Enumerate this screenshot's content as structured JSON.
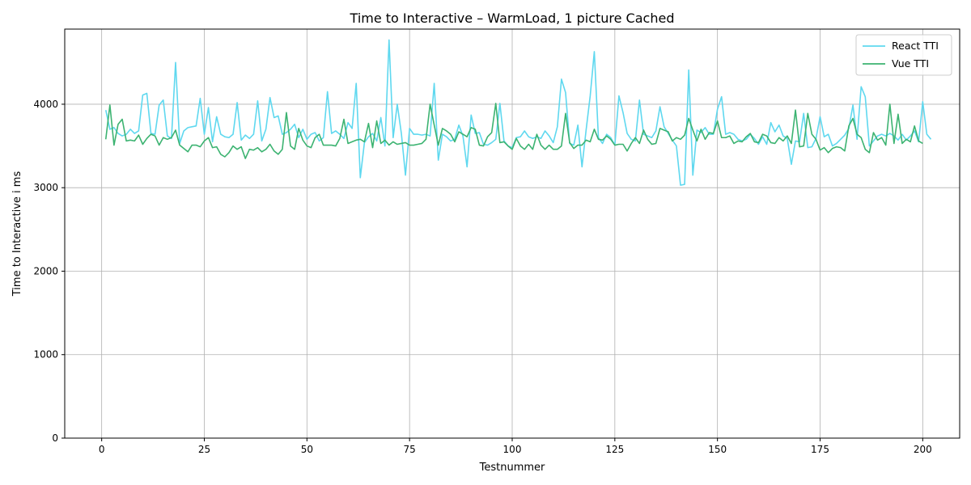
{
  "chart_data": {
    "type": "line",
    "title": "Time to Interactive  – WarmLoad, 1 picture Cached",
    "xlabel": "Testnummer",
    "ylabel": "Time to Interactive  i ms",
    "xlim": [
      -9,
      209
    ],
    "ylim": [
      0,
      4900
    ],
    "xticks": [
      0,
      25,
      50,
      75,
      100,
      125,
      150,
      175,
      200
    ],
    "yticks": [
      0,
      1000,
      2000,
      3000,
      4000
    ],
    "grid": true,
    "legend_position": "top-right",
    "series": [
      {
        "name": "React TTI",
        "color": "#5fd8ef",
        "x_start": 1,
        "values": [
          3930,
          3700,
          3720,
          3650,
          3620,
          3640,
          3700,
          3650,
          3680,
          4110,
          4130,
          3650,
          3640,
          3990,
          4050,
          3620,
          3590,
          4500,
          3530,
          3680,
          3720,
          3730,
          3740,
          4070,
          3640,
          3960,
          3550,
          3850,
          3640,
          3610,
          3600,
          3640,
          4020,
          3570,
          3630,
          3590,
          3640,
          4040,
          3560,
          3700,
          4080,
          3840,
          3860,
          3640,
          3660,
          3700,
          3760,
          3600,
          3700,
          3580,
          3640,
          3660,
          3560,
          3600,
          4150,
          3650,
          3680,
          3640,
          3590,
          3780,
          3710,
          4250,
          3120,
          3540,
          3610,
          3650,
          3560,
          3840,
          3500,
          4770,
          3600,
          4000,
          3650,
          3150,
          3710,
          3640,
          3640,
          3630,
          3640,
          3620,
          4250,
          3330,
          3640,
          3610,
          3560,
          3580,
          3750,
          3620,
          3250,
          3870,
          3650,
          3660,
          3520,
          3510,
          3540,
          3580,
          4010,
          3560,
          3500,
          3480,
          3600,
          3610,
          3680,
          3610,
          3590,
          3610,
          3590,
          3680,
          3620,
          3540,
          3730,
          4300,
          4140,
          3530,
          3510,
          3750,
          3250,
          3690,
          4100,
          4630,
          3600,
          3530,
          3640,
          3600,
          3510,
          4100,
          3900,
          3650,
          3580,
          3560,
          4050,
          3640,
          3620,
          3600,
          3680,
          3970,
          3730,
          3650,
          3570,
          3500,
          3030,
          3040,
          4410,
          3150,
          3690,
          3660,
          3720,
          3640,
          3640,
          3940,
          4090,
          3640,
          3660,
          3640,
          3580,
          3560,
          3580,
          3640,
          3590,
          3520,
          3610,
          3520,
          3780,
          3670,
          3750,
          3620,
          3590,
          3280,
          3560,
          3550,
          3890,
          3480,
          3490,
          3590,
          3850,
          3610,
          3640,
          3500,
          3530,
          3580,
          3630,
          3710,
          3990,
          3580,
          4210,
          4090,
          3500,
          3560,
          3620,
          3640,
          3620,
          3650,
          3620,
          3570,
          3640,
          3570,
          3620,
          3680,
          3550,
          4030,
          3640,
          3580
        ]
      },
      {
        "name": "Vue TTI",
        "color": "#3cb371",
        "x_start": 1,
        "values": [
          3580,
          3990,
          3510,
          3760,
          3820,
          3560,
          3570,
          3560,
          3630,
          3520,
          3590,
          3640,
          3620,
          3510,
          3600,
          3580,
          3600,
          3690,
          3510,
          3470,
          3430,
          3510,
          3510,
          3490,
          3560,
          3600,
          3480,
          3490,
          3400,
          3370,
          3420,
          3500,
          3460,
          3490,
          3350,
          3460,
          3450,
          3480,
          3430,
          3460,
          3520,
          3440,
          3400,
          3460,
          3900,
          3500,
          3460,
          3710,
          3570,
          3500,
          3480,
          3600,
          3640,
          3510,
          3510,
          3510,
          3500,
          3590,
          3820,
          3530,
          3550,
          3570,
          3580,
          3550,
          3770,
          3480,
          3800,
          3530,
          3570,
          3510,
          3550,
          3520,
          3530,
          3540,
          3510,
          3510,
          3520,
          3530,
          3580,
          4000,
          3750,
          3510,
          3710,
          3680,
          3640,
          3550,
          3670,
          3640,
          3610,
          3720,
          3700,
          3510,
          3500,
          3610,
          3660,
          4010,
          3540,
          3550,
          3500,
          3460,
          3590,
          3500,
          3460,
          3520,
          3460,
          3640,
          3510,
          3460,
          3510,
          3460,
          3460,
          3500,
          3890,
          3540,
          3470,
          3510,
          3510,
          3570,
          3550,
          3700,
          3580,
          3570,
          3620,
          3580,
          3510,
          3520,
          3520,
          3440,
          3530,
          3600,
          3530,
          3690,
          3580,
          3520,
          3530,
          3710,
          3690,
          3670,
          3560,
          3600,
          3580,
          3630,
          3830,
          3690,
          3560,
          3700,
          3580,
          3660,
          3650,
          3800,
          3600,
          3600,
          3620,
          3530,
          3560,
          3550,
          3610,
          3650,
          3550,
          3540,
          3640,
          3620,
          3540,
          3530,
          3600,
          3560,
          3620,
          3530,
          3930,
          3490,
          3500,
          3890,
          3640,
          3580,
          3450,
          3480,
          3420,
          3470,
          3490,
          3480,
          3440,
          3740,
          3830,
          3640,
          3600,
          3460,
          3420,
          3660,
          3570,
          3600,
          3510,
          4000,
          3530,
          3880,
          3530,
          3580,
          3550,
          3740,
          3560,
          3530
        ]
      }
    ]
  }
}
